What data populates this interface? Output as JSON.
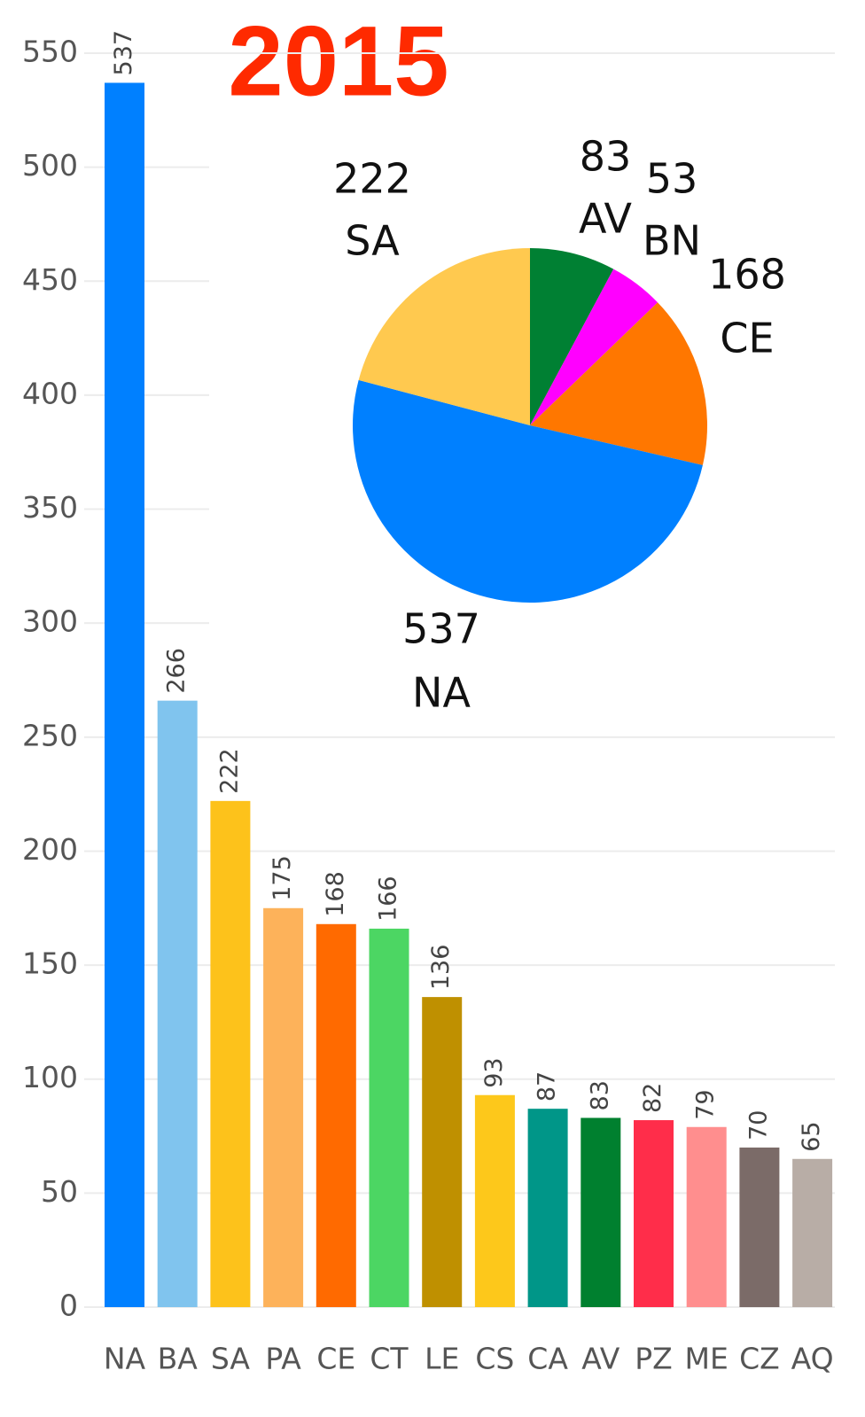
{
  "chart_data": [
    {
      "type": "bar",
      "title": "2015",
      "categories": [
        "NA",
        "BA",
        "SA",
        "PA",
        "CE",
        "CT",
        "LE",
        "CS",
        "CA",
        "AV",
        "PZ",
        "ME",
        "CZ",
        "AQ"
      ],
      "values": [
        537,
        266,
        222,
        175,
        168,
        166,
        136,
        93,
        87,
        83,
        82,
        79,
        70,
        65
      ],
      "colors": [
        "#0080ff",
        "#80c4ee",
        "#fdc21b",
        "#fdb25a",
        "#ff6a00",
        "#4cd663",
        "#bf9000",
        "#fdc81b",
        "#009688",
        "#00802f",
        "#ff2d4a",
        "#ff8e8e",
        "#7b6b68",
        "#b8ada6"
      ],
      "ylim": [
        0,
        550
      ],
      "yticks": [
        0,
        50,
        100,
        150,
        200,
        250,
        300,
        350,
        400,
        450,
        500,
        550
      ],
      "grid": true
    },
    {
      "type": "pie",
      "categories": [
        "AV",
        "BN",
        "CE",
        "NA",
        "SA"
      ],
      "values": [
        83,
        53,
        168,
        537,
        222
      ],
      "colors": [
        "#008033",
        "#ff00ff",
        "#ff7700",
        "#0080ff",
        "#ffc94f"
      ]
    }
  ]
}
